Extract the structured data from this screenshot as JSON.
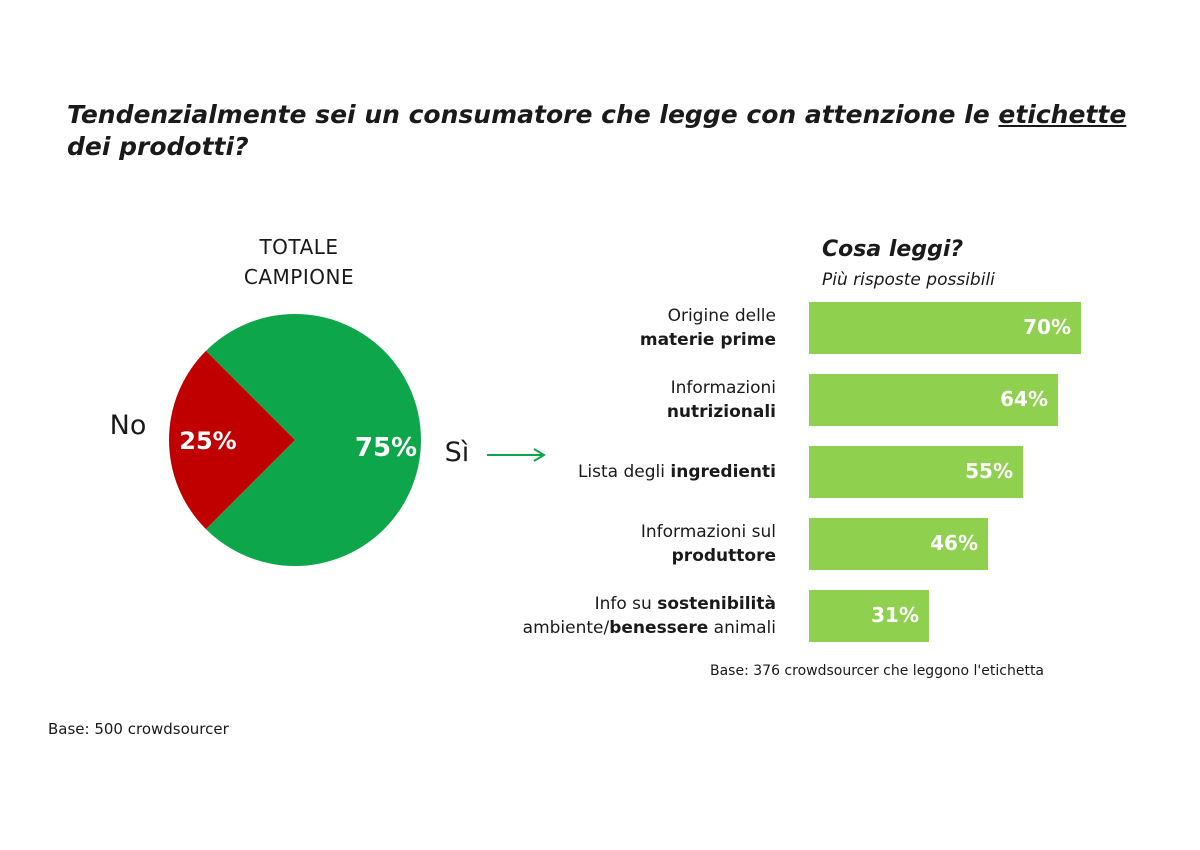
{
  "title": {
    "before": "Tendenzialmente sei un consumatore che legge con attenzione le ",
    "underlined": "etichette",
    "after": " dei prodotti?"
  },
  "pie_header": [
    "TOTALE",
    "CAMPIONE"
  ],
  "bars_title": "Cosa leggi?",
  "bars_subtitle": "Più risposte possibili",
  "base_right": "Base: 376 crowdsourcer che leggono l'etichetta",
  "base_left": "Base: 500 crowdsourcer",
  "colors": {
    "yes": "#0ea64b",
    "no": "#c00000",
    "bar": "#8fd14f",
    "arrow": "#0ea64b"
  },
  "chart_data": [
    {
      "type": "pie",
      "title": "TOTALE CAMPIONE",
      "slices": [
        {
          "name": "Sì",
          "value": 75,
          "label": "75%"
        },
        {
          "name": "No",
          "value": 25,
          "label": "25%"
        }
      ]
    },
    {
      "type": "bar",
      "orientation": "horizontal",
      "title": "Cosa leggi?",
      "subtitle": "Più risposte possibili",
      "categories": [
        "Origine delle materie prime",
        "Informazioni nutrizionali",
        "Lista degli ingredienti",
        "Informazioni sul produttore",
        "Info su sostenibilità ambiente/benessere animali"
      ],
      "category_lines": [
        [
          [
            "Origine delle",
            false
          ]
        ],
        [
          [
            "materie prime",
            true
          ]
        ],
        [
          [
            "Informazioni",
            false
          ]
        ],
        [
          [
            "nutrizionali",
            true
          ]
        ],
        [
          [
            "Lista degli ",
            false
          ],
          [
            "ingredienti",
            true
          ]
        ],
        [
          [
            "Informazioni sul",
            false
          ]
        ],
        [
          [
            "produttore",
            true
          ]
        ],
        [
          [
            "Info su ",
            false
          ],
          [
            "sostenibilità",
            true
          ]
        ],
        [
          [
            "ambiente/",
            false
          ],
          [
            "benessere",
            true
          ],
          [
            " animali",
            false
          ]
        ]
      ],
      "values": [
        70,
        64,
        55,
        46,
        31
      ],
      "value_labels": [
        "70%",
        "64%",
        "55%",
        "46%",
        "31%"
      ],
      "xlim": [
        0,
        100
      ]
    }
  ]
}
